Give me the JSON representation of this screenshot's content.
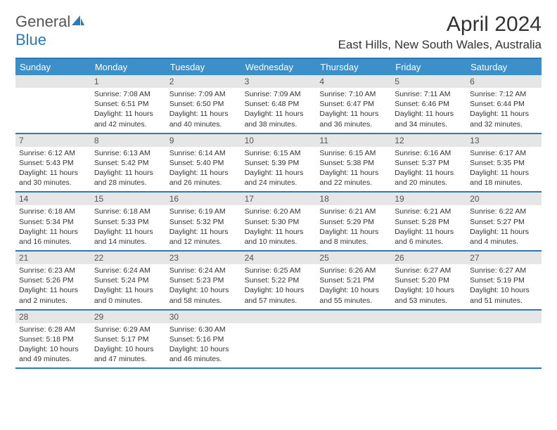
{
  "logo": {
    "word1": "General",
    "word2": "Blue"
  },
  "title": "April 2024",
  "location": "East Hills, New South Wales, Australia",
  "colors": {
    "header_bg": "#3d8fc9",
    "border": "#2a7ab8",
    "daynum_bg": "#e6e6e6",
    "text": "#333333"
  },
  "day_names": [
    "Sunday",
    "Monday",
    "Tuesday",
    "Wednesday",
    "Thursday",
    "Friday",
    "Saturday"
  ],
  "weeks": [
    {
      "nums": [
        "",
        "1",
        "2",
        "3",
        "4",
        "5",
        "6"
      ],
      "cells": [
        null,
        {
          "sunrise": "Sunrise: 7:08 AM",
          "sunset": "Sunset: 6:51 PM",
          "daylight": "Daylight: 11 hours and 42 minutes."
        },
        {
          "sunrise": "Sunrise: 7:09 AM",
          "sunset": "Sunset: 6:50 PM",
          "daylight": "Daylight: 11 hours and 40 minutes."
        },
        {
          "sunrise": "Sunrise: 7:09 AM",
          "sunset": "Sunset: 6:48 PM",
          "daylight": "Daylight: 11 hours and 38 minutes."
        },
        {
          "sunrise": "Sunrise: 7:10 AM",
          "sunset": "Sunset: 6:47 PM",
          "daylight": "Daylight: 11 hours and 36 minutes."
        },
        {
          "sunrise": "Sunrise: 7:11 AM",
          "sunset": "Sunset: 6:46 PM",
          "daylight": "Daylight: 11 hours and 34 minutes."
        },
        {
          "sunrise": "Sunrise: 7:12 AM",
          "sunset": "Sunset: 6:44 PM",
          "daylight": "Daylight: 11 hours and 32 minutes."
        }
      ]
    },
    {
      "nums": [
        "7",
        "8",
        "9",
        "10",
        "11",
        "12",
        "13"
      ],
      "cells": [
        {
          "sunrise": "Sunrise: 6:12 AM",
          "sunset": "Sunset: 5:43 PM",
          "daylight": "Daylight: 11 hours and 30 minutes."
        },
        {
          "sunrise": "Sunrise: 6:13 AM",
          "sunset": "Sunset: 5:42 PM",
          "daylight": "Daylight: 11 hours and 28 minutes."
        },
        {
          "sunrise": "Sunrise: 6:14 AM",
          "sunset": "Sunset: 5:40 PM",
          "daylight": "Daylight: 11 hours and 26 minutes."
        },
        {
          "sunrise": "Sunrise: 6:15 AM",
          "sunset": "Sunset: 5:39 PM",
          "daylight": "Daylight: 11 hours and 24 minutes."
        },
        {
          "sunrise": "Sunrise: 6:15 AM",
          "sunset": "Sunset: 5:38 PM",
          "daylight": "Daylight: 11 hours and 22 minutes."
        },
        {
          "sunrise": "Sunrise: 6:16 AM",
          "sunset": "Sunset: 5:37 PM",
          "daylight": "Daylight: 11 hours and 20 minutes."
        },
        {
          "sunrise": "Sunrise: 6:17 AM",
          "sunset": "Sunset: 5:35 PM",
          "daylight": "Daylight: 11 hours and 18 minutes."
        }
      ]
    },
    {
      "nums": [
        "14",
        "15",
        "16",
        "17",
        "18",
        "19",
        "20"
      ],
      "cells": [
        {
          "sunrise": "Sunrise: 6:18 AM",
          "sunset": "Sunset: 5:34 PM",
          "daylight": "Daylight: 11 hours and 16 minutes."
        },
        {
          "sunrise": "Sunrise: 6:18 AM",
          "sunset": "Sunset: 5:33 PM",
          "daylight": "Daylight: 11 hours and 14 minutes."
        },
        {
          "sunrise": "Sunrise: 6:19 AM",
          "sunset": "Sunset: 5:32 PM",
          "daylight": "Daylight: 11 hours and 12 minutes."
        },
        {
          "sunrise": "Sunrise: 6:20 AM",
          "sunset": "Sunset: 5:30 PM",
          "daylight": "Daylight: 11 hours and 10 minutes."
        },
        {
          "sunrise": "Sunrise: 6:21 AM",
          "sunset": "Sunset: 5:29 PM",
          "daylight": "Daylight: 11 hours and 8 minutes."
        },
        {
          "sunrise": "Sunrise: 6:21 AM",
          "sunset": "Sunset: 5:28 PM",
          "daylight": "Daylight: 11 hours and 6 minutes."
        },
        {
          "sunrise": "Sunrise: 6:22 AM",
          "sunset": "Sunset: 5:27 PM",
          "daylight": "Daylight: 11 hours and 4 minutes."
        }
      ]
    },
    {
      "nums": [
        "21",
        "22",
        "23",
        "24",
        "25",
        "26",
        "27"
      ],
      "cells": [
        {
          "sunrise": "Sunrise: 6:23 AM",
          "sunset": "Sunset: 5:26 PM",
          "daylight": "Daylight: 11 hours and 2 minutes."
        },
        {
          "sunrise": "Sunrise: 6:24 AM",
          "sunset": "Sunset: 5:24 PM",
          "daylight": "Daylight: 11 hours and 0 minutes."
        },
        {
          "sunrise": "Sunrise: 6:24 AM",
          "sunset": "Sunset: 5:23 PM",
          "daylight": "Daylight: 10 hours and 58 minutes."
        },
        {
          "sunrise": "Sunrise: 6:25 AM",
          "sunset": "Sunset: 5:22 PM",
          "daylight": "Daylight: 10 hours and 57 minutes."
        },
        {
          "sunrise": "Sunrise: 6:26 AM",
          "sunset": "Sunset: 5:21 PM",
          "daylight": "Daylight: 10 hours and 55 minutes."
        },
        {
          "sunrise": "Sunrise: 6:27 AM",
          "sunset": "Sunset: 5:20 PM",
          "daylight": "Daylight: 10 hours and 53 minutes."
        },
        {
          "sunrise": "Sunrise: 6:27 AM",
          "sunset": "Sunset: 5:19 PM",
          "daylight": "Daylight: 10 hours and 51 minutes."
        }
      ]
    },
    {
      "nums": [
        "28",
        "29",
        "30",
        "",
        "",
        "",
        ""
      ],
      "cells": [
        {
          "sunrise": "Sunrise: 6:28 AM",
          "sunset": "Sunset: 5:18 PM",
          "daylight": "Daylight: 10 hours and 49 minutes."
        },
        {
          "sunrise": "Sunrise: 6:29 AM",
          "sunset": "Sunset: 5:17 PM",
          "daylight": "Daylight: 10 hours and 47 minutes."
        },
        {
          "sunrise": "Sunrise: 6:30 AM",
          "sunset": "Sunset: 5:16 PM",
          "daylight": "Daylight: 10 hours and 46 minutes."
        },
        null,
        null,
        null,
        null
      ]
    }
  ]
}
